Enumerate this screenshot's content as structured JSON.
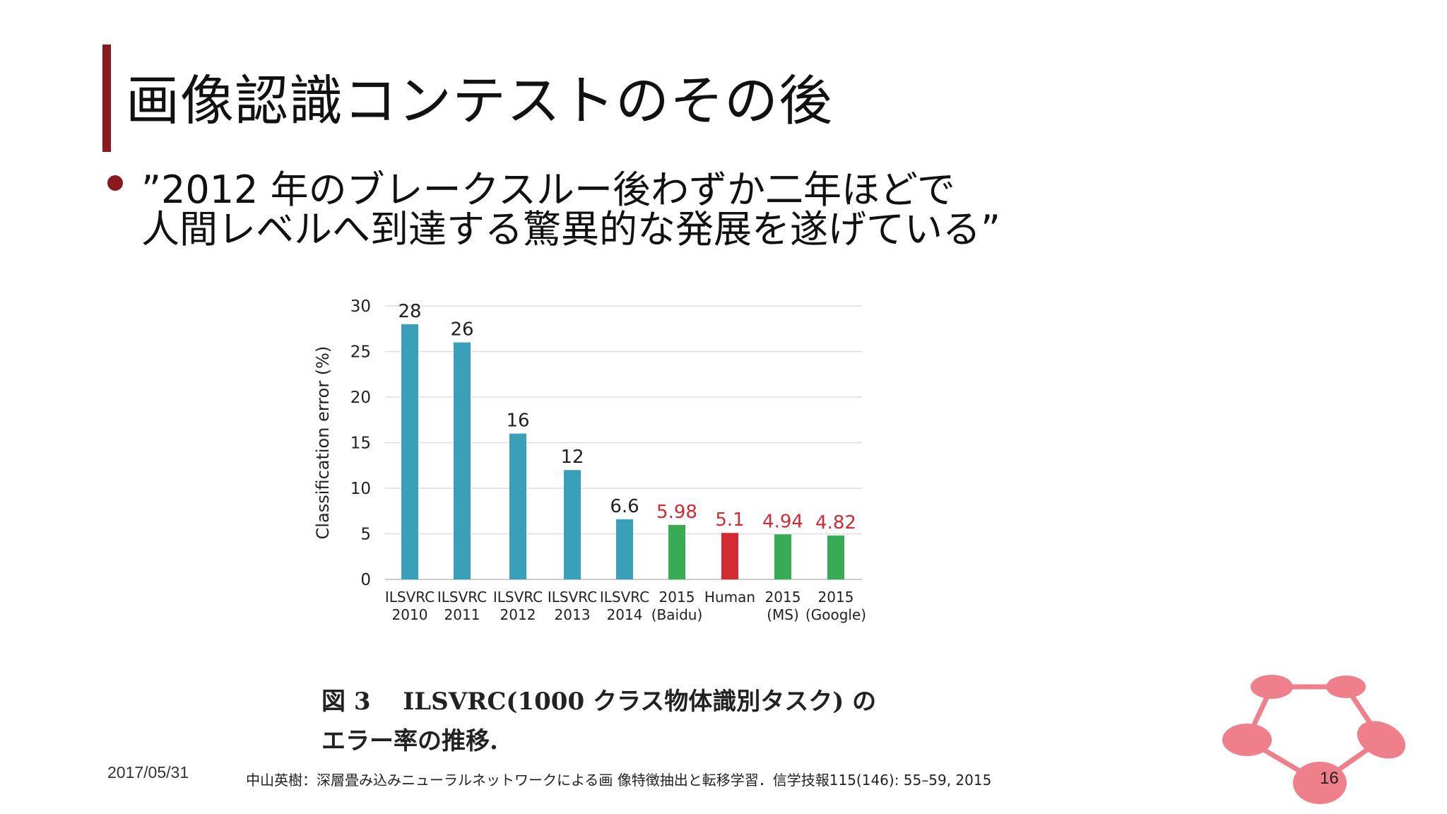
{
  "slide": {
    "title": "画像認識コンテストのその後",
    "bullet_line1": "”2012 年のブレークスルー後わずか二年ほどで",
    "bullet_line2": "人間レベルへ到達する驚異的な発展を遂げている”",
    "caption_line1": "図 3　 ILSVRC(1000 クラス物体識別タスク) の",
    "caption_line2": "エラー率の推移.",
    "date": "2017/05/31",
    "reference": "中山英樹：深層畳み込みニューラルネットワークによる画 像特徴抽出と転移学習．信学技報115(146): 55–59, 2015",
    "page_number": "16"
  },
  "colors": {
    "accent": "#8b1a1f",
    "teal": "#3a9fb9",
    "green": "#3aab55",
    "red": "#d42a34",
    "logo": "#ef7f8a"
  },
  "chart_data": {
    "type": "bar",
    "ylabel": "Classification error (%)",
    "ylim": [
      0,
      30
    ],
    "yticks": [
      0,
      5,
      10,
      15,
      20,
      25,
      30
    ],
    "grid": true,
    "categories": [
      [
        "ILSVRC",
        "2010"
      ],
      [
        "ILSVRC",
        "2011"
      ],
      [
        "ILSVRC",
        "2012"
      ],
      [
        "ILSVRC",
        "2013"
      ],
      [
        "ILSVRC",
        "2014"
      ],
      [
        "2015",
        "(Baidu)"
      ],
      [
        "Human",
        ""
      ],
      [
        "2015",
        "(MS)"
      ],
      [
        "2015",
        "(Google)"
      ]
    ],
    "values": [
      28,
      26,
      16,
      12,
      6.6,
      5.98,
      5.1,
      4.94,
      4.82
    ],
    "value_labels": [
      "28",
      "26",
      "16",
      "12",
      "6.6",
      "5.98",
      "5.1",
      "4.94",
      "4.82"
    ],
    "bar_colors": [
      "teal",
      "teal",
      "teal",
      "teal",
      "teal",
      "green",
      "red",
      "green",
      "green"
    ],
    "label_colors": [
      "dark",
      "dark",
      "dark",
      "dark",
      "dark",
      "red",
      "red",
      "red",
      "red"
    ]
  }
}
